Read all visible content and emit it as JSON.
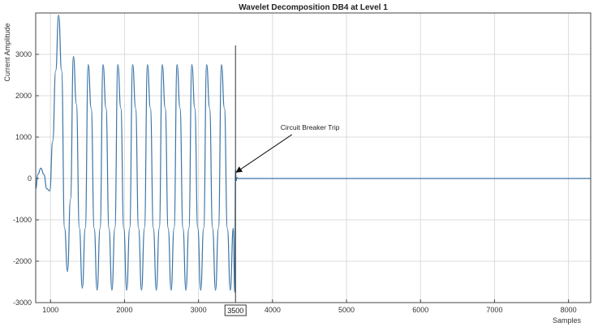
{
  "chart_data": {
    "type": "line",
    "title": "Wavelet Decomposition DB4 at Level 1",
    "xlabel": "Samples",
    "ylabel": "Current Amplitude",
    "xlim": [
      800,
      8300
    ],
    "ylim": [
      -3000,
      4000
    ],
    "x_ticks": [
      1000,
      2000,
      3000,
      4000,
      5000,
      6000,
      7000,
      8000
    ],
    "x_tick_labels": [
      "1000",
      "2000",
      "3000",
      "4000",
      "5000",
      "6000",
      "7000",
      "8000"
    ],
    "y_ticks": [
      -3000,
      -2000,
      -1000,
      0,
      1000,
      2000,
      3000
    ],
    "y_tick_labels": [
      "-3000",
      "-2000",
      "-1000",
      "0",
      "1000",
      "2000",
      "3000"
    ],
    "grid": true,
    "line_color": "#3a74a6",
    "series": [
      {
        "x": [
          800,
          830,
          870,
          910,
          950,
          990,
          1030,
          1070,
          1110,
          1150,
          1190,
          1230,
          1270,
          1310,
          1350,
          1390,
          1430,
          1470,
          1510,
          1550,
          1590,
          1630,
          1670,
          1710,
          1750,
          1790,
          1830,
          1870,
          1910,
          1950,
          1990,
          2030,
          2070,
          2110,
          2150,
          2190,
          2230,
          2270,
          2310,
          2350,
          2390,
          2430,
          2470,
          2510,
          2550,
          2590,
          2630,
          2670,
          2710,
          2750,
          2790,
          2830,
          2870,
          2910,
          2950,
          2990,
          3030,
          3070,
          3110,
          3150,
          3190,
          3230,
          3270,
          3310,
          3350,
          3390,
          3430,
          3470,
          3490,
          3500,
          3510,
          3520,
          3540,
          8300
        ],
        "y": [
          -250,
          100,
          250,
          100,
          -250,
          -300,
          900,
          2600,
          3950,
          2600,
          -1200,
          -2250,
          -500,
          2950,
          1800,
          -1200,
          -2650,
          -1200,
          2750,
          1700,
          -1200,
          -2700,
          -1200,
          2750,
          1700,
          -1200,
          -2700,
          -1200,
          2750,
          1700,
          -1200,
          -2700,
          -1200,
          2750,
          1700,
          -1200,
          -2700,
          -1200,
          2750,
          1700,
          -1200,
          -2700,
          -1200,
          2750,
          1700,
          -1200,
          -2700,
          -1200,
          2750,
          1700,
          -1200,
          -2700,
          -1200,
          2750,
          1700,
          -1200,
          -2700,
          -1200,
          2750,
          1700,
          -1200,
          -2700,
          -1200,
          2750,
          1700,
          -1200,
          -2700,
          -1200,
          -2750,
          200,
          -50,
          20,
          0,
          0
        ]
      }
    ],
    "annotations": [
      {
        "text": "Circuit Breaker Trip",
        "x": 4350,
        "y": 1100,
        "arrow_to": [
          3510,
          150
        ]
      }
    ],
    "marker": {
      "x": 3500,
      "label": "3500"
    }
  }
}
